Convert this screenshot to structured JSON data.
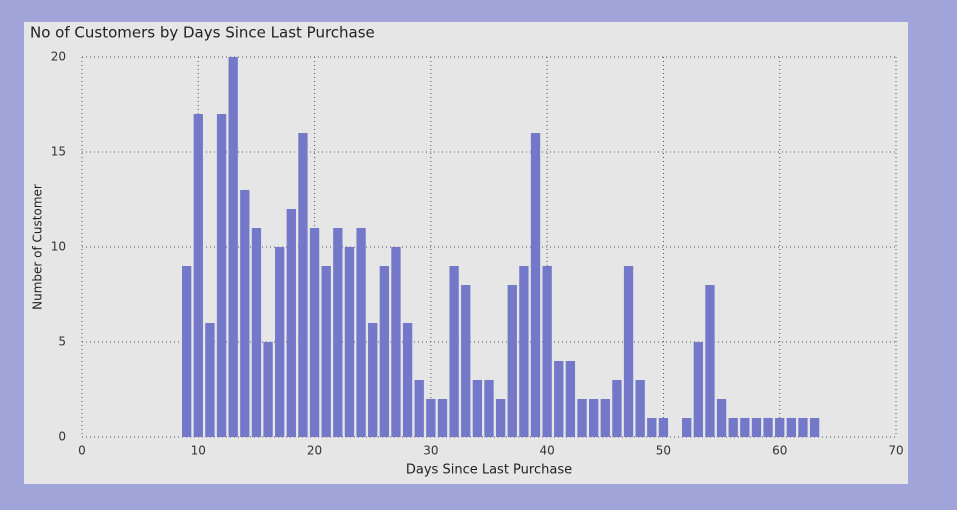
{
  "chart_data": {
    "type": "bar",
    "title": "No of Customers by Days Since Last Purchase",
    "x_label": "Days Since Last Purchase",
    "y_label": "Number of Customer",
    "x": [
      9,
      10,
      11,
      12,
      13,
      14,
      15,
      16,
      17,
      18,
      19,
      20,
      21,
      22,
      23,
      24,
      25,
      26,
      27,
      28,
      29,
      30,
      31,
      32,
      33,
      34,
      35,
      36,
      37,
      38,
      39,
      40,
      41,
      42,
      43,
      44,
      45,
      46,
      47,
      48,
      49,
      50,
      52,
      53,
      54,
      55,
      56,
      57,
      58,
      59,
      60,
      61,
      62,
      63
    ],
    "values": [
      9,
      17,
      6,
      17,
      20,
      13,
      11,
      5,
      10,
      12,
      16,
      11,
      9,
      11,
      10,
      11,
      6,
      9,
      10,
      6,
      3,
      2,
      2,
      9,
      8,
      3,
      3,
      2,
      8,
      9,
      16,
      9,
      4,
      4,
      2,
      2,
      2,
      3,
      9,
      3,
      1,
      1,
      1,
      5,
      8,
      2,
      1,
      1,
      1,
      1,
      1,
      1,
      1,
      1
    ],
    "color": "#7378c8",
    "xlim": [
      0,
      70
    ],
    "xticks": [
      0,
      10,
      20,
      30,
      40,
      50,
      60,
      70
    ],
    "ylim": [
      0,
      20
    ],
    "yticks": [
      0,
      5,
      10,
      15,
      20
    ],
    "grid": true
  }
}
